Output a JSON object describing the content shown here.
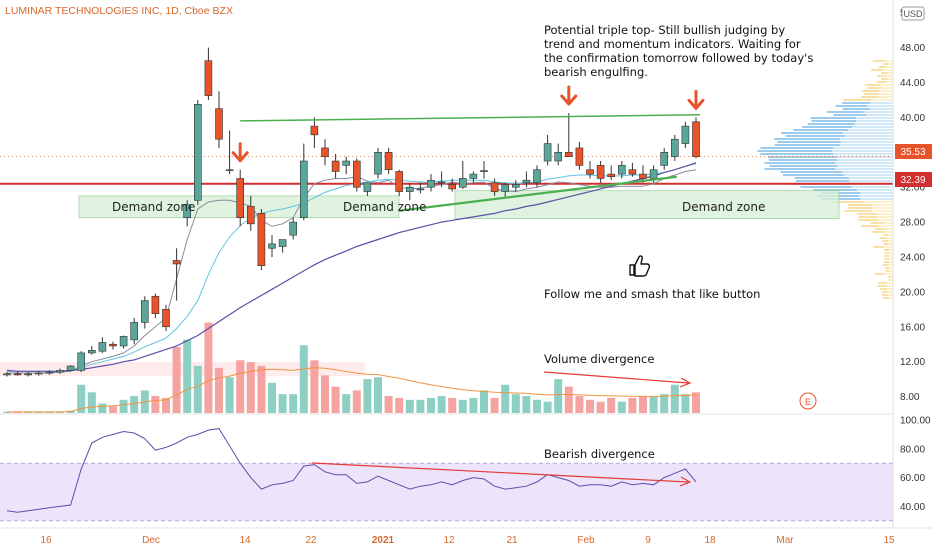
{
  "title": "LUMINAR TECHNOLOGIES INC, 1D, Cboe BZX",
  "currency": "USD",
  "colors": {
    "up": "#5aa69a",
    "down": "#e8532a",
    "vol_up": "#8ecfc3",
    "vol_down": "#f4a3a0",
    "resistance": "#4caf50",
    "support": "#d32f2f",
    "ma_slow": "#5b4fa8",
    "ma_fast": "#5ec5e0",
    "bb": "#8a8aa0",
    "vol_ma": "#f29340",
    "rsi": "#5b4fa8",
    "rsi_band": "#ede4fb",
    "demand_zone": "#d9f0d9",
    "arrow": "#e8532a",
    "price_tag": "#e8532a"
  },
  "price_axis": [
    "52.00",
    "48.00",
    "44.00",
    "40.00",
    "36.00",
    "32.00",
    "28.00",
    "24.00",
    "20.00",
    "16.00",
    "12.00",
    "8.00"
  ],
  "rsi_axis": [
    "100.00",
    "80.00",
    "60.00",
    "40.00"
  ],
  "price_tags": {
    "current": "35.53",
    "support": "32.39"
  },
  "x_axis": [
    {
      "label": "16",
      "major": false
    },
    {
      "label": "Dec",
      "major": false
    },
    {
      "label": "14",
      "major": false
    },
    {
      "label": "22",
      "major": false
    },
    {
      "label": "2021",
      "major": true
    },
    {
      "label": "12",
      "major": false
    },
    {
      "label": "21",
      "major": false
    },
    {
      "label": "Feb",
      "major": false
    },
    {
      "label": "9",
      "major": false
    },
    {
      "label": "18",
      "major": false
    },
    {
      "label": "Mar",
      "major": false
    },
    {
      "label": "15",
      "major": false
    }
  ],
  "annotations": {
    "triple_top": [
      "Potential triple top-  Still bullish judging by",
      "trend and momentum indicators.  Waiting for",
      "the confirmation tomorrow followed by today's",
      "bearish engulfing."
    ],
    "demand_zone_1": "Demand zone",
    "demand_zone_2": "Demand zone",
    "demand_zone_3": "Demand zone",
    "follow": "Follow me and smash that like button",
    "thumbs_icon": "thumbs-up-icon",
    "volume_divergence": "Volume divergence",
    "bearish_divergence": "Bearish divergence",
    "earnings_marker": "E"
  },
  "chart_data": {
    "type": "candlestick",
    "title": "LUMINAR TECHNOLOGIES INC, 1D, Cboe BZX",
    "ylim": [
      6,
      53
    ],
    "grid": false,
    "candles": [
      {
        "o": 10.5,
        "h": 10.8,
        "l": 10.3,
        "c": 10.6
      },
      {
        "o": 10.6,
        "h": 10.9,
        "l": 10.4,
        "c": 10.5
      },
      {
        "o": 10.5,
        "h": 10.8,
        "l": 10.3,
        "c": 10.6
      },
      {
        "o": 10.6,
        "h": 10.9,
        "l": 10.4,
        "c": 10.7
      },
      {
        "o": 10.7,
        "h": 11.0,
        "l": 10.5,
        "c": 10.8
      },
      {
        "o": 10.8,
        "h": 11.2,
        "l": 10.6,
        "c": 11.0
      },
      {
        "o": 11.0,
        "h": 11.6,
        "l": 10.9,
        "c": 11.5
      },
      {
        "o": 11.0,
        "h": 13.2,
        "l": 10.8,
        "c": 13.0
      },
      {
        "o": 13.0,
        "h": 13.8,
        "l": 12.8,
        "c": 13.3
      },
      {
        "o": 13.2,
        "h": 14.8,
        "l": 13.0,
        "c": 14.2
      },
      {
        "o": 14.0,
        "h": 14.3,
        "l": 13.4,
        "c": 13.8
      },
      {
        "o": 13.8,
        "h": 15.0,
        "l": 13.5,
        "c": 14.9
      },
      {
        "o": 14.5,
        "h": 17.0,
        "l": 14.0,
        "c": 16.5
      },
      {
        "o": 16.5,
        "h": 19.5,
        "l": 15.8,
        "c": 19.0
      },
      {
        "o": 19.5,
        "h": 19.8,
        "l": 17.0,
        "c": 17.5
      },
      {
        "o": 18.0,
        "h": 18.5,
        "l": 15.5,
        "c": 16.0
      },
      {
        "o": 23.6,
        "h": 25.0,
        "l": 19.0,
        "c": 23.2
      },
      {
        "o": 28.5,
        "h": 30.5,
        "l": 27.5,
        "c": 30.0
      },
      {
        "o": 30.5,
        "h": 42.0,
        "l": 30.0,
        "c": 41.5
      },
      {
        "o": 46.5,
        "h": 48.0,
        "l": 42.0,
        "c": 42.5
      },
      {
        "o": 41.0,
        "h": 43.0,
        "l": 36.5,
        "c": 37.5
      },
      {
        "o": 34.0,
        "h": 38.5,
        "l": 33.5,
        "c": 34.0
      },
      {
        "o": 33.0,
        "h": 34.0,
        "l": 27.5,
        "c": 28.5
      },
      {
        "o": 29.8,
        "h": 31.0,
        "l": 27.0,
        "c": 27.8
      },
      {
        "o": 29.0,
        "h": 29.5,
        "l": 22.5,
        "c": 23.0
      },
      {
        "o": 25.0,
        "h": 26.5,
        "l": 24.0,
        "c": 25.5
      },
      {
        "o": 25.2,
        "h": 26.0,
        "l": 24.5,
        "c": 26.0
      },
      {
        "o": 26.5,
        "h": 28.5,
        "l": 26.0,
        "c": 28.0
      },
      {
        "o": 28.5,
        "h": 37.0,
        "l": 28.2,
        "c": 35.0
      },
      {
        "o": 39.0,
        "h": 40.0,
        "l": 36.5,
        "c": 38.0
      },
      {
        "o": 36.5,
        "h": 37.5,
        "l": 34.5,
        "c": 35.5
      },
      {
        "o": 35.0,
        "h": 35.8,
        "l": 33.0,
        "c": 33.8
      },
      {
        "o": 34.5,
        "h": 35.5,
        "l": 33.5,
        "c": 35.0
      },
      {
        "o": 35.0,
        "h": 35.3,
        "l": 31.5,
        "c": 32.0
      },
      {
        "o": 31.5,
        "h": 32.5,
        "l": 31.0,
        "c": 32.5
      },
      {
        "o": 33.5,
        "h": 36.5,
        "l": 33.0,
        "c": 36.0
      },
      {
        "o": 36.0,
        "h": 36.5,
        "l": 33.5,
        "c": 34.0
      },
      {
        "o": 33.8,
        "h": 34.0,
        "l": 31.0,
        "c": 31.5
      },
      {
        "o": 31.5,
        "h": 32.5,
        "l": 30.5,
        "c": 32.0
      },
      {
        "o": 31.8,
        "h": 32.5,
        "l": 31.3,
        "c": 31.8
      },
      {
        "o": 32.0,
        "h": 33.5,
        "l": 31.5,
        "c": 32.8
      },
      {
        "o": 32.6,
        "h": 33.8,
        "l": 32.0,
        "c": 32.6
      },
      {
        "o": 32.3,
        "h": 33.0,
        "l": 31.5,
        "c": 31.8
      },
      {
        "o": 32.0,
        "h": 35.0,
        "l": 31.8,
        "c": 33.0
      },
      {
        "o": 33.0,
        "h": 33.8,
        "l": 32.5,
        "c": 33.5
      },
      {
        "o": 33.8,
        "h": 35.0,
        "l": 33.0,
        "c": 33.9
      },
      {
        "o": 32.5,
        "h": 33.0,
        "l": 31.0,
        "c": 31.5
      },
      {
        "o": 31.5,
        "h": 32.5,
        "l": 30.8,
        "c": 32.3
      },
      {
        "o": 32.0,
        "h": 32.8,
        "l": 31.5,
        "c": 32.3
      },
      {
        "o": 32.5,
        "h": 33.8,
        "l": 32.0,
        "c": 32.8
      },
      {
        "o": 32.5,
        "h": 34.5,
        "l": 32.0,
        "c": 34.0
      },
      {
        "o": 35.0,
        "h": 38.0,
        "l": 34.5,
        "c": 37.0
      },
      {
        "o": 35.0,
        "h": 37.0,
        "l": 34.5,
        "c": 36.0
      },
      {
        "o": 36.0,
        "h": 40.5,
        "l": 35.5,
        "c": 35.5
      },
      {
        "o": 36.5,
        "h": 37.2,
        "l": 34.0,
        "c": 34.5
      },
      {
        "o": 34.0,
        "h": 35.0,
        "l": 33.0,
        "c": 33.5
      },
      {
        "o": 34.5,
        "h": 35.0,
        "l": 32.5,
        "c": 33.0
      },
      {
        "o": 33.5,
        "h": 34.5,
        "l": 32.8,
        "c": 33.2
      },
      {
        "o": 33.5,
        "h": 35.0,
        "l": 33.0,
        "c": 34.5
      },
      {
        "o": 34.0,
        "h": 34.8,
        "l": 33.2,
        "c": 33.5
      },
      {
        "o": 33.5,
        "h": 34.5,
        "l": 32.5,
        "c": 33.0
      },
      {
        "o": 33.0,
        "h": 34.5,
        "l": 32.5,
        "c": 34.0
      },
      {
        "o": 34.5,
        "h": 36.5,
        "l": 34.0,
        "c": 36.0
      },
      {
        "o": 35.5,
        "h": 38.0,
        "l": 35.0,
        "c": 37.5
      },
      {
        "o": 37.0,
        "h": 39.5,
        "l": 36.5,
        "c": 39.0
      },
      {
        "o": 39.5,
        "h": 40.0,
        "l": 35.3,
        "c": 35.5
      }
    ],
    "volume": {
      "ylim": [
        0,
        30
      ],
      "values": [
        0.3,
        0.3,
        0.3,
        0.3,
        0.3,
        0.4,
        0.6,
        7.5,
        5.5,
        2.5,
        1.8,
        3.5,
        4.5,
        6.0,
        4.5,
        4.0,
        17.5,
        19.5,
        12.5,
        24.0,
        12.0,
        9.5,
        14.0,
        13.5,
        12.5,
        8.0,
        5.0,
        5.0,
        18.0,
        14.0,
        10.0,
        7.0,
        5.0,
        6.0,
        9.0,
        9.5,
        4.5,
        4.0,
        3.5,
        3.5,
        4.0,
        4.5,
        4.0,
        3.5,
        4.0,
        6.0,
        4.0,
        7.5,
        5.0,
        4.5,
        3.5,
        3.0,
        9.0,
        7.0,
        4.5,
        3.5,
        3.0,
        4.0,
        3.0,
        4.0,
        4.5,
        4.5,
        5.0,
        7.5,
        5.0,
        5.5
      ]
    },
    "ma_slow": [
      11.0,
      10.9,
      10.9,
      10.9,
      10.9,
      10.9,
      11.0,
      11.1,
      11.3,
      11.5,
      11.7,
      12.0,
      12.2,
      12.6,
      13.0,
      13.4,
      13.8,
      14.4,
      15.0,
      15.8,
      16.6,
      17.4,
      18.2,
      18.9,
      19.6,
      20.3,
      21.0,
      21.7,
      22.4,
      23.1,
      23.7,
      24.2,
      24.7,
      25.2,
      25.6,
      26.0,
      26.4,
      26.8,
      27.1,
      27.4,
      27.7,
      28.0,
      28.2,
      28.4,
      28.6,
      28.8,
      29.0,
      29.3,
      29.5,
      29.8,
      30.0,
      30.3,
      30.6,
      30.9,
      31.2,
      31.5,
      31.8,
      32.1,
      32.4,
      32.7,
      33.0,
      33.3,
      33.7,
      34.0,
      34.4,
      34.8
    ],
    "ma_fast": [
      10.9,
      10.9,
      10.9,
      10.9,
      10.9,
      10.9,
      11.0,
      11.3,
      11.7,
      12.0,
      12.3,
      12.6,
      13.1,
      13.7,
      14.2,
      14.7,
      15.8,
      17.2,
      19.0,
      22.0,
      24.5,
      26.3,
      27.6,
      28.5,
      29.0,
      29.3,
      29.5,
      29.8,
      30.2,
      30.8,
      31.4,
      31.8,
      32.2,
      32.4,
      32.6,
      32.8,
      32.9,
      32.8,
      32.7,
      32.6,
      32.6,
      32.7,
      32.8,
      32.8,
      32.8,
      32.8,
      32.6,
      32.5,
      32.4,
      32.5,
      32.6,
      32.9,
      33.1,
      33.3,
      33.4,
      33.4,
      33.3,
      33.3,
      33.3,
      33.4,
      33.4,
      33.5,
      33.7,
      34.0,
      34.4,
      34.7
    ],
    "bb": [
      10.7,
      10.7,
      10.7,
      10.7,
      10.7,
      10.8,
      10.9,
      11.5,
      12.0,
      12.3,
      12.6,
      13.0,
      13.8,
      15.0,
      16.0,
      17.0,
      21.5,
      26.0,
      29.5,
      30.3,
      30.5,
      30.5,
      30.2,
      29.8,
      28.2,
      27.5,
      27.8,
      28.5,
      30.8,
      32.4,
      32.8,
      33.0,
      33.0,
      33.2,
      32.7,
      32.5,
      32.8,
      32.0,
      31.8,
      31.9,
      32.1,
      32.3,
      32.6,
      32.4,
      32.5,
      32.6,
      31.8,
      31.6,
      31.5,
      31.8,
      32.0,
      32.3,
      32.6,
      32.5,
      32.3,
      32.1,
      32.0,
      32.0,
      32.1,
      32.1,
      32.1,
      32.4,
      33.0,
      33.4,
      33.8,
      34.0
    ],
    "volume_ma": {
      "ylim": [
        0,
        30
      ],
      "values": [
        0.3,
        0.3,
        0.3,
        0.3,
        0.3,
        0.3,
        0.4,
        1.2,
        1.6,
        1.8,
        1.9,
        2.2,
        2.5,
        3.0,
        3.3,
        3.5,
        4.8,
        6.3,
        7.1,
        8.6,
        9.3,
        9.8,
        10.5,
        11.0,
        11.5,
        11.6,
        11.5,
        11.3,
        11.7,
        12.0,
        11.9,
        11.5,
        11.0,
        10.6,
        10.3,
        10.2,
        9.7,
        9.2,
        8.6,
        8.0,
        7.5,
        7.0,
        6.6,
        6.2,
        5.9,
        5.7,
        5.5,
        5.4,
        5.3,
        5.2,
        5.0,
        4.8,
        4.9,
        4.9,
        4.8,
        4.7,
        4.6,
        4.6,
        4.5,
        4.4,
        4.4,
        4.4,
        4.5,
        4.6,
        4.7,
        4.8
      ]
    },
    "rsi": {
      "ylim": [
        25,
        100
      ],
      "values": [
        37,
        36,
        37,
        38,
        39,
        40,
        41,
        66,
        84,
        88,
        90,
        92,
        91,
        87,
        79,
        81,
        84,
        88,
        90,
        93,
        94,
        82,
        70,
        60,
        52,
        55,
        56,
        58,
        68,
        69,
        64,
        62,
        62,
        56,
        57,
        61,
        58,
        55,
        52,
        54,
        55,
        57,
        55,
        58,
        60,
        59,
        54,
        52,
        53,
        54,
        57,
        62,
        60,
        58,
        54,
        55,
        55,
        54,
        57,
        55,
        56,
        55,
        60,
        63,
        66,
        57
      ]
    },
    "rsi_band": [
      30,
      70
    ],
    "levels": {
      "support": 32.39,
      "current": 35.53,
      "resistance_line": [
        {
          "i": 22,
          "y": 39.6
        },
        {
          "i": 65,
          "y": 40.3
        }
      ],
      "trendline": [
        {
          "i": 37,
          "y": 29.3
        },
        {
          "i": 63,
          "y": 33.2
        }
      ],
      "demand_zone_1": [
        28.5,
        31.0
      ],
      "demand_zone_2": [
        28.4,
        31.6
      ],
      "triple_top_markers": [
        22,
        53,
        65
      ]
    }
  }
}
